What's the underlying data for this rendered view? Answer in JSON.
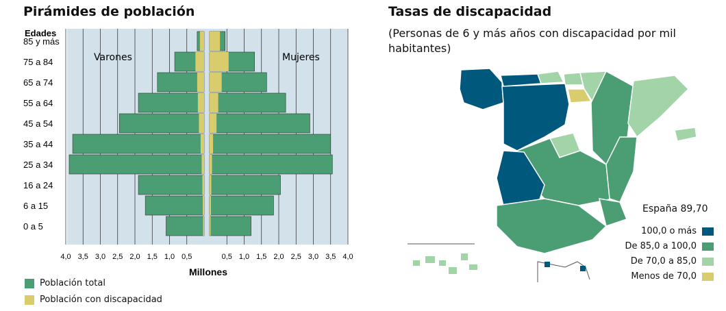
{
  "colors": {
    "total": "#4b9e74",
    "discapacidad": "#d9cc6c",
    "background_panel": "#d3e2ea",
    "dark_blue": "#00587c",
    "light_green": "#a2d4a8"
  },
  "pyramid": {
    "title": "Pirámides de población",
    "axis_header": "Edades",
    "label_left": "Varones",
    "label_right": "Mujeres",
    "xlabel": "Millones",
    "legend_total": "Población total",
    "legend_disc": "Población con discapacidad"
  },
  "map": {
    "title": "Tasas de discapacidad",
    "subtitle": "(Personas de 6 y más años con discapacidad por mil habitantes)",
    "spain_total": "España 89,70",
    "legend": [
      {
        "label": "100,0 o más",
        "color": "#00587c"
      },
      {
        "label": "De 85,0 a 100,0",
        "color": "#4b9e74"
      },
      {
        "label": "De 70,0 a 85,0",
        "color": "#a2d4a8"
      },
      {
        "label": "Menos de 70,0",
        "color": "#d9cc6c"
      }
    ]
  },
  "chart_data": [
    {
      "type": "bar",
      "orientation": "horizontal",
      "subtype": "population-pyramid",
      "title": "Pirámides de población",
      "xlabel": "Millones",
      "ylabel": "Edades",
      "xlim": [
        0,
        4.0
      ],
      "x_ticks_left": [
        "4,0",
        "3,5",
        "3,0",
        "2,5",
        "2,0",
        "1,5",
        "1,0",
        "0,5"
      ],
      "x_ticks_right": [
        "0,5",
        "1,0",
        "1,5",
        "2,0",
        "2,5",
        "3,0",
        "3,5",
        "4,0"
      ],
      "categories": [
        "85 y más",
        "75 a 84",
        "65 a 74",
        "55 a 64",
        "45 a 54",
        "35 a 44",
        "25 a 34",
        "16 a 24",
        "6 a 15",
        "0 a 5"
      ],
      "series": [
        {
          "name": "Población total",
          "side": "Varones",
          "values": [
            0.2,
            0.85,
            1.35,
            1.9,
            2.45,
            3.8,
            3.9,
            1.9,
            1.7,
            1.1
          ]
        },
        {
          "name": "Población con discapacidad",
          "side": "Varones",
          "values": [
            0.12,
            0.25,
            0.2,
            0.18,
            0.15,
            0.1,
            0.07,
            0.05,
            0.04,
            0.03
          ]
        },
        {
          "name": "Población total",
          "side": "Mujeres",
          "values": [
            0.45,
            1.3,
            1.65,
            2.2,
            2.9,
            3.5,
            3.55,
            2.05,
            1.85,
            1.2
          ]
        },
        {
          "name": "Población con discapacidad",
          "side": "Mujeres",
          "values": [
            0.3,
            0.55,
            0.35,
            0.25,
            0.2,
            0.1,
            0.07,
            0.05,
            0.04,
            0.03
          ]
        }
      ],
      "legend_position": "bottom-left",
      "grid": true
    }
  ]
}
